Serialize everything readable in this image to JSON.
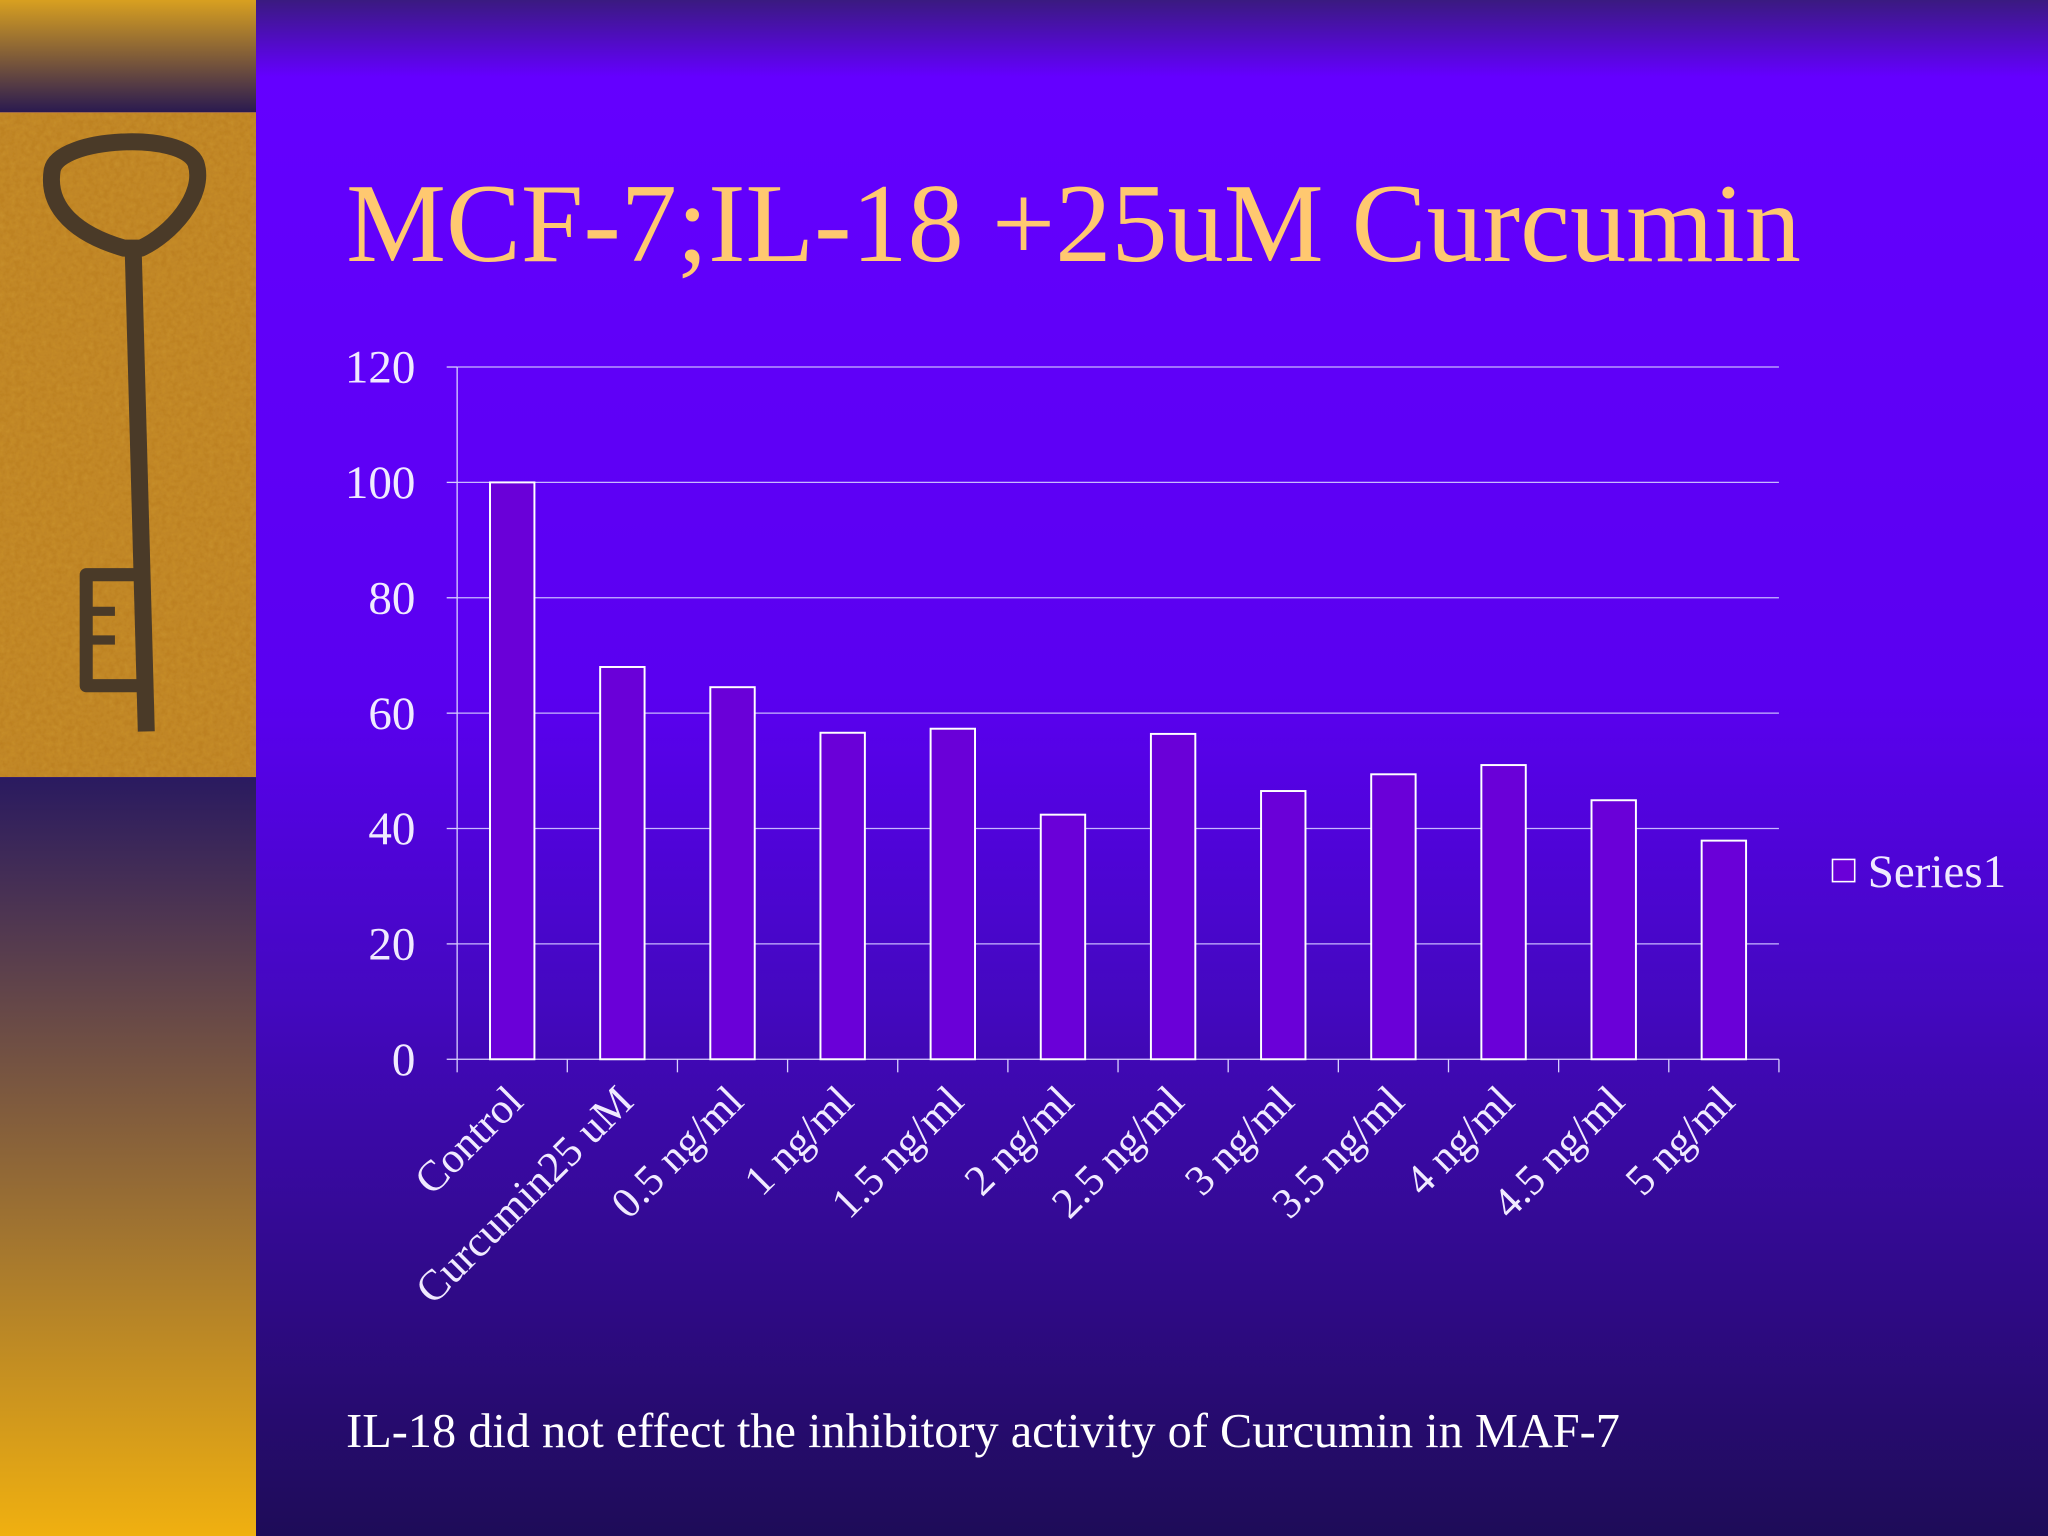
{
  "chart_data": {
    "type": "bar",
    "title": "MCF-7;IL-18 +25uM Curcumin",
    "categories": [
      "Control",
      "Curcumin25 uM",
      "0.5 ng/ml",
      "1 ng/ml",
      "1.5 ng/ml",
      "2 ng/ml",
      "2.5 ng/ml",
      "3 ng/ml",
      "3.5 ng/ml",
      "4 ng/ml",
      "4.5 ng/ml",
      "5 ng/ml"
    ],
    "series": [
      {
        "name": "Series1",
        "color": "#6a00d8",
        "values": [
          100,
          68,
          64.5,
          56.6,
          57.3,
          42.4,
          56.4,
          46.5,
          49.4,
          51,
          44.9,
          37.9
        ]
      }
    ],
    "ylim": [
      0,
      120
    ],
    "yticks": [
      0,
      20,
      40,
      60,
      80,
      100,
      120
    ],
    "grid": true,
    "legend": "right",
    "caption": "IL-18 did not effect the inhibitory activity of Curcumin in MAF-7"
  }
}
